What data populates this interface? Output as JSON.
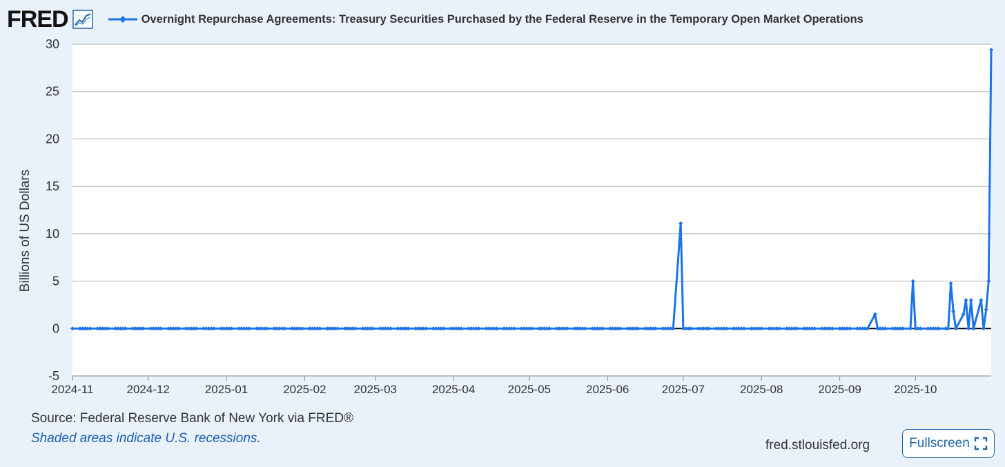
{
  "header": {
    "logo_text": "FRED",
    "title": "Overnight Repurchase Agreements: Treasury Securities Purchased by the Federal Reserve in the Temporary Open Market Operations"
  },
  "footer": {
    "source": "Source: Federal Reserve Bank of New York via FRED®",
    "shaded_note": "Shaded areas indicate U.S. recessions.",
    "site": "fred.stlouisfed.org",
    "fullscreen_label": "Fullscreen"
  },
  "colors": {
    "series": "#1a73e8",
    "zero_line": "#000000",
    "grid": "#cccccc"
  },
  "chart_data": {
    "type": "line",
    "title": "Overnight Repurchase Agreements: Treasury Securities Purchased by the Federal Reserve in the Temporary Open Market Operations",
    "xlabel": "",
    "ylabel": "Billions of US Dollars",
    "ylim": [
      -5,
      30
    ],
    "yticks": [
      -5,
      0,
      5,
      10,
      15,
      20,
      25,
      30
    ],
    "xlim": [
      "2024-11-01",
      "2025-10-31"
    ],
    "xtick_labels": [
      "2024-11",
      "2024-12",
      "2025-01",
      "2025-02",
      "2025-03",
      "2025-04",
      "2025-05",
      "2025-06",
      "2025-07",
      "2025-08",
      "2025-09",
      "2025-10"
    ],
    "grid": true,
    "legend": "top-left",
    "series": [
      {
        "name": "Overnight Repurchase Agreements: Treasury Securities Purchased by the Federal Reserve in the Temporary Open Market Operations",
        "baseline_value": 0,
        "baseline_start": "2024-11-01",
        "baseline_end": "2025-10-14",
        "spikes": [
          {
            "x": "2025-06-30",
            "y": 11.1
          },
          {
            "x": "2025-09-15",
            "y": 1.5
          },
          {
            "x": "2025-09-30",
            "y": 5.0
          }
        ],
        "tail": [
          {
            "x": "2025-10-14",
            "y": 0
          },
          {
            "x": "2025-10-15",
            "y": 4.75
          },
          {
            "x": "2025-10-16",
            "y": 1.8
          },
          {
            "x": "2025-10-17",
            "y": 0
          },
          {
            "x": "2025-10-20",
            "y": 1.5
          },
          {
            "x": "2025-10-21",
            "y": 3.0
          },
          {
            "x": "2025-10-22",
            "y": 0
          },
          {
            "x": "2025-10-23",
            "y": 3.0
          },
          {
            "x": "2025-10-24",
            "y": 0
          },
          {
            "x": "2025-10-27",
            "y": 3.0
          },
          {
            "x": "2025-10-28",
            "y": 0
          },
          {
            "x": "2025-10-29",
            "y": 2.0
          },
          {
            "x": "2025-10-30",
            "y": 5.0
          },
          {
            "x": "2025-10-31",
            "y": 29.4
          }
        ]
      }
    ]
  }
}
